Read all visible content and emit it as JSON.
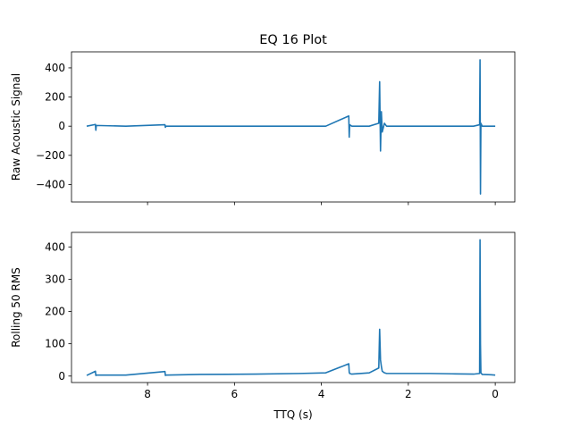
{
  "figure": {
    "title": "EQ 16 Plot"
  },
  "chart_data": [
    {
      "type": "line",
      "title": "EQ 16 Plot",
      "xlabel": "",
      "ylabel": "Raw Acoustic Signal",
      "x_axis_reversed": true,
      "xlim": [
        9.75,
        -0.45
      ],
      "ylim": [
        -520,
        510
      ],
      "yticks": [
        -400,
        -200,
        0,
        200,
        400
      ],
      "xticks": [
        8,
        6,
        4,
        2,
        0
      ],
      "x_tick_labels_shown": false,
      "grid": false,
      "color": "#1f77b4",
      "series": [
        {
          "x": [
            9.4,
            9.2,
            9.19,
            9.18,
            8.5,
            7.6,
            7.59,
            7.58,
            6.8,
            5.5,
            4.5,
            3.9,
            3.37,
            3.36,
            3.35,
            3.3,
            2.9,
            2.68,
            2.66,
            2.64,
            2.62,
            2.6,
            2.55,
            2.5,
            2.0,
            1.5,
            1.0,
            0.5,
            0.36,
            0.35,
            0.34,
            0.33,
            0.3,
            0.1,
            0.0
          ],
          "y": [
            0,
            12,
            -28,
            5,
            0,
            10,
            -8,
            0,
            0,
            0,
            0,
            0,
            70,
            -75,
            10,
            0,
            0,
            20,
            305,
            -170,
            100,
            -40,
            20,
            0,
            0,
            0,
            0,
            0,
            10,
            455,
            -465,
            20,
            0,
            0,
            0
          ]
        }
      ]
    },
    {
      "type": "line",
      "title": "",
      "xlabel": "TTQ (s)",
      "ylabel": "Rolling 50 RMS",
      "x_axis_reversed": true,
      "xlim": [
        9.75,
        -0.45
      ],
      "ylim": [
        -20,
        445
      ],
      "yticks": [
        0,
        100,
        200,
        300,
        400
      ],
      "xticks": [
        8,
        6,
        4,
        2,
        0
      ],
      "xtick_labels": [
        "8",
        "6",
        "4",
        "2",
        "0"
      ],
      "grid": false,
      "color": "#1f77b4",
      "series": [
        {
          "x": [
            9.4,
            9.2,
            9.19,
            9.18,
            8.5,
            7.6,
            7.59,
            7.58,
            6.8,
            5.5,
            4.5,
            3.9,
            3.37,
            3.36,
            3.35,
            3.3,
            2.9,
            2.68,
            2.66,
            2.64,
            2.62,
            2.6,
            2.55,
            2.5,
            2.0,
            1.5,
            1.0,
            0.5,
            0.36,
            0.35,
            0.34,
            0.33,
            0.3,
            0.1,
            0.0
          ],
          "y": [
            2,
            15,
            2,
            3,
            3,
            14,
            2,
            3,
            5,
            6,
            8,
            10,
            38,
            12,
            8,
            6,
            10,
            25,
            145,
            50,
            30,
            15,
            10,
            8,
            8,
            8,
            7,
            6,
            8,
            422,
            100,
            10,
            5,
            4,
            3
          ]
        }
      ]
    }
  ]
}
